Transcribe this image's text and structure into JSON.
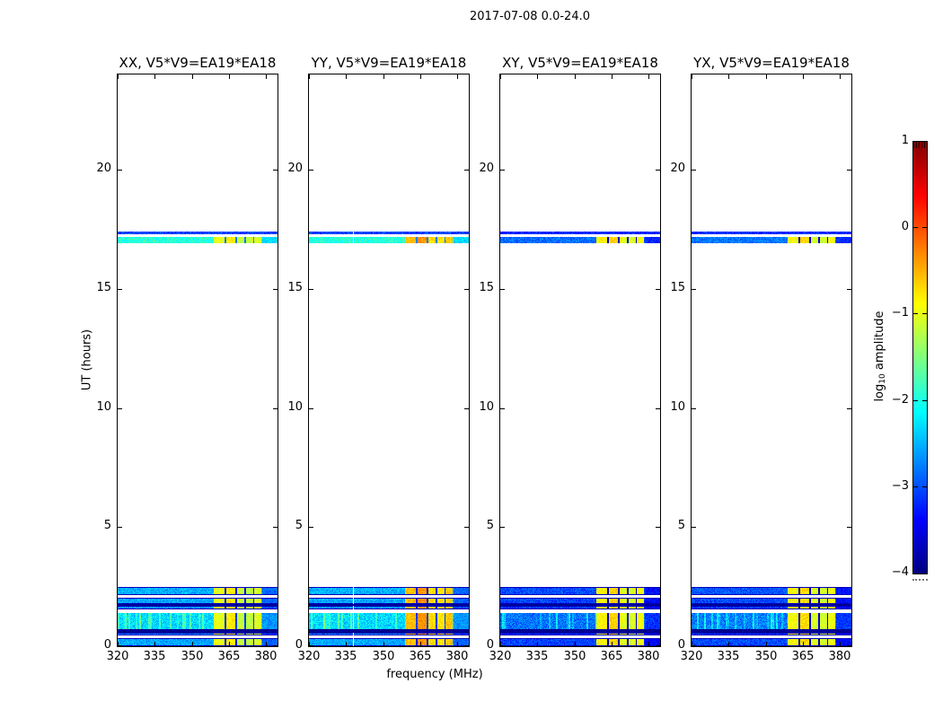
{
  "figure": {
    "kind": "matplotlib-style dynamic spectrum figure"
  },
  "chart_data": {
    "type": "heatmap",
    "title": "2017-07-08 0.0-24.0",
    "xlabel": "frequency (MHz)",
    "ylabel": "UT (hours)",
    "x_axis": {
      "range": [
        320,
        384.7
      ],
      "ticks": [
        320,
        335,
        350,
        365,
        380
      ],
      "tick_labels": [
        "320",
        "335",
        "350",
        "365",
        "380"
      ]
    },
    "y_axis": {
      "range": [
        0,
        24
      ],
      "ticks": [
        0,
        5,
        10,
        15,
        20
      ],
      "tick_labels": [
        "0",
        "5",
        "10",
        "15",
        "20"
      ]
    },
    "colorbar": {
      "label": "log10 amplitude",
      "label_pre": "log",
      "label_sub": "10",
      "label_post": " amplitude",
      "range": [
        -4,
        1
      ],
      "ticks": [
        1,
        0,
        -1,
        -2,
        -3,
        -4
      ],
      "tick_labels": [
        "1",
        "0",
        "−1",
        "−2",
        "−3",
        "−4"
      ],
      "colormap": "jet",
      "colormap_stops": [
        [
          "#000080",
          0
        ],
        [
          "#0000ff",
          0.125
        ],
        [
          "#00ffff",
          0.375
        ],
        [
          "#ffff00",
          0.625
        ],
        [
          "#ff0000",
          0.875
        ],
        [
          "#800000",
          1
        ]
      ]
    },
    "panels": [
      {
        "id": "XX",
        "title": "XX, V5*V9=EA19*EA18",
        "scan_offset": 0.0,
        "rfi_offset": -0.15,
        "cal_level": -1.95
      },
      {
        "id": "YY",
        "title": "YY, V5*V9=EA19*EA18",
        "scan_offset": 0.0,
        "rfi_offset": 0.3,
        "cal_level": -1.95,
        "dead_channel": 337.8
      },
      {
        "id": "XY",
        "title": "XY, V5*V9=EA19*EA18",
        "scan_offset": -0.5,
        "rfi_offset": 0.0,
        "cal_level": -2.85
      },
      {
        "id": "YX",
        "title": "YX, V5*V9=EA19*EA18",
        "scan_offset": -0.45,
        "rfi_offset": -0.05,
        "cal_level": -2.8
      }
    ],
    "scans": [
      {
        "ut": [
          0.0,
          0.34
        ],
        "level": -2.55,
        "edge_dark": true
      },
      {
        "ut": [
          0.44,
          0.57
        ],
        "level": -2.65,
        "edge_dark": true
      },
      {
        "ut": [
          0.58,
          0.7
        ],
        "level": -3.9,
        "dark": true
      },
      {
        "ut": [
          0.72,
          1.38
        ],
        "level": -2.3,
        "bright": true
      },
      {
        "ut": [
          1.54,
          1.68
        ],
        "level": -2.65,
        "edge_dark": true
      },
      {
        "ut": [
          1.7,
          1.76
        ],
        "level": -3.9,
        "dark": true
      },
      {
        "ut": [
          1.77,
          2.05
        ],
        "level": -2.55,
        "edge_dark": true
      },
      {
        "ut": [
          2.13,
          2.47
        ],
        "level": -2.5,
        "edge_dark": true
      },
      {
        "ut": [
          16.92,
          17.17
        ],
        "level": -2.0,
        "calibrator": true
      },
      {
        "ut": [
          17.3,
          17.4
        ],
        "level": -3.05,
        "thin": true
      }
    ],
    "rfi_bands": [
      {
        "f": [
          358.8,
          363.2
        ],
        "level": -0.85
      },
      {
        "f": [
          363.9,
          367.3
        ],
        "level": -0.65
      },
      {
        "f": [
          368.0,
          371.0
        ],
        "level": -1.0
      },
      {
        "f": [
          371.7,
          374.6
        ],
        "level": -1.05
      },
      {
        "f": [
          375.2,
          377.8
        ],
        "level": -0.9
      }
    ],
    "rfi_tail_start": 378.4
  }
}
